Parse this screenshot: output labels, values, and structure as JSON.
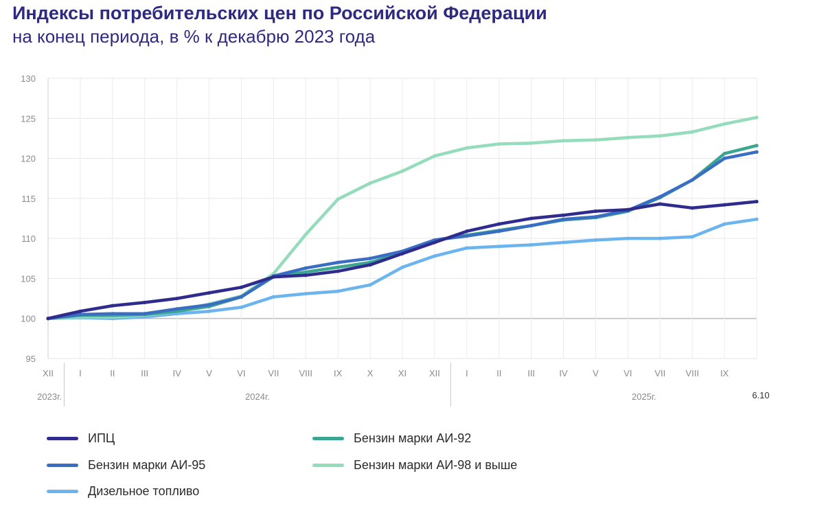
{
  "header": {
    "title": "Индексы потребительских цен по Российской Федерации",
    "subtitle": "на конец периода, в % к декабрю 2023 года"
  },
  "chart_data": {
    "type": "line",
    "title": "Индексы потребительских цен по Российской Федерации",
    "subtitle": "на конец периода, в % к декабрю 2023 года",
    "ylim": [
      95,
      130
    ],
    "yticks": [
      95,
      100,
      105,
      110,
      115,
      120,
      125,
      130
    ],
    "grid": true,
    "categories": [
      "XII",
      "I",
      "II",
      "III",
      "IV",
      "V",
      "VI",
      "VII",
      "VIII",
      "IX",
      "X",
      "XI",
      "XII",
      "I",
      "II",
      "III",
      "IV",
      "V",
      "VI",
      "VII",
      "VIII",
      "IX",
      "6.10"
    ],
    "tick_labels": [
      "XII",
      "I",
      "II",
      "III",
      "IV",
      "V",
      "VI",
      "VII",
      "VIII",
      "IX",
      "X",
      "XI",
      "XII",
      "I",
      "II",
      "III",
      "IV",
      "V",
      "VI",
      "VII",
      "VIII",
      "IX"
    ],
    "year_labels": [
      "2023г.",
      "2024г.",
      "2025г."
    ],
    "last_point_label": "6.10",
    "series": [
      {
        "name": "Дизельное топливо",
        "color": "#6cb4ee",
        "values": [
          100.0,
          100.1,
          100.0,
          100.2,
          100.6,
          100.9,
          101.4,
          102.7,
          103.1,
          103.4,
          104.2,
          106.4,
          107.8,
          108.8,
          109.0,
          109.2,
          109.5,
          109.8,
          110.0,
          110.0,
          110.2,
          111.8,
          112.4
        ]
      },
      {
        "name": "Бензин марки АИ-98 и выше",
        "color": "#94dcbc",
        "values": [
          100.0,
          100.2,
          100.2,
          100.4,
          100.9,
          101.8,
          102.8,
          105.6,
          110.5,
          114.9,
          116.9,
          118.4,
          120.3,
          121.3,
          121.8,
          121.9,
          122.2,
          122.3,
          122.6,
          122.8,
          123.3,
          124.3,
          125.1
        ]
      },
      {
        "name": "Бензин марки АИ-92",
        "color": "#3aa590",
        "values": [
          100.0,
          100.4,
          100.4,
          100.5,
          100.9,
          101.5,
          102.7,
          105.2,
          105.8,
          106.4,
          107.0,
          108.2,
          109.8,
          110.4,
          111.0,
          111.6,
          112.3,
          112.6,
          113.4,
          115.1,
          117.3,
          120.6,
          121.6
        ]
      },
      {
        "name": "Бензин марки АИ-95",
        "color": "#3a6ec2",
        "values": [
          100.0,
          100.5,
          100.6,
          100.6,
          101.2,
          101.7,
          102.7,
          105.3,
          106.3,
          107.0,
          107.5,
          108.4,
          109.8,
          110.3,
          110.9,
          111.6,
          112.4,
          112.7,
          113.5,
          115.2,
          117.3,
          120.0,
          120.8
        ]
      },
      {
        "name": "ИПЦ",
        "color": "#2f2c8e",
        "values": [
          100.0,
          100.9,
          101.6,
          102.0,
          102.5,
          103.2,
          103.9,
          105.2,
          105.4,
          105.9,
          106.7,
          108.1,
          109.5,
          110.9,
          111.8,
          112.5,
          112.9,
          113.4,
          113.6,
          114.3,
          113.8,
          114.2,
          114.6
        ]
      }
    ]
  },
  "legend": {
    "items": [
      {
        "label": "ИПЦ",
        "color": "#2f2c8e"
      },
      {
        "label": "Бензин марки АИ-92",
        "color": "#3aa590"
      },
      {
        "label": "Бензин марки АИ-95",
        "color": "#3a6ec2"
      },
      {
        "label": "Бензин марки АИ-98 и выше",
        "color": "#94dcbc"
      },
      {
        "label": "Дизельное топливо",
        "color": "#6cb4ee"
      }
    ]
  }
}
